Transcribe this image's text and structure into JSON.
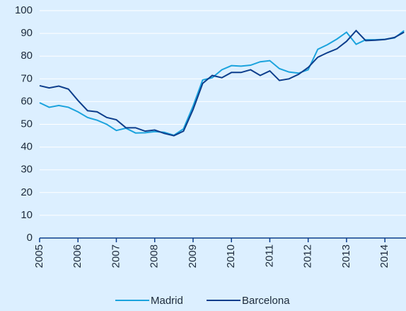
{
  "chart_data": {
    "type": "line",
    "x": [
      2005,
      2005.25,
      2005.5,
      2005.75,
      2006,
      2006.25,
      2006.5,
      2006.75,
      2007,
      2007.25,
      2007.5,
      2007.75,
      2008,
      2008.25,
      2008.5,
      2008.75,
      2009,
      2009.25,
      2009.5,
      2009.75,
      2010,
      2010.25,
      2010.5,
      2010.75,
      2011,
      2011.25,
      2011.5,
      2011.75,
      2012,
      2012.25,
      2012.5,
      2012.75,
      2013,
      2013.25,
      2013.5,
      2013.75,
      2014,
      2014.25,
      2014.5
    ],
    "series": [
      {
        "name": "Madrid",
        "color": "#1ba3dd",
        "values": [
          59.5,
          57.5,
          58.3,
          57.5,
          55.5,
          53,
          51.8,
          50,
          47.3,
          48.3,
          46.2,
          46.3,
          46.8,
          46.5,
          45.2,
          48,
          58,
          69.5,
          70.5,
          74,
          75.8,
          75.6,
          76,
          77.5,
          78,
          74.5,
          73,
          72.5,
          74,
          83,
          85,
          87.5,
          90.5,
          85.2,
          87.2,
          87.2,
          87.4,
          88,
          91.2
        ]
      },
      {
        "name": "Barcelona",
        "color": "#0d3e8c",
        "values": [
          67,
          66,
          66.8,
          65.5,
          60.5,
          56,
          55.5,
          53,
          52,
          48.5,
          48.5,
          47,
          47.5,
          46,
          45,
          47,
          56.5,
          68,
          71.5,
          70.5,
          72.8,
          72.8,
          74,
          71.5,
          73.5,
          69.3,
          70,
          72,
          75,
          79.5,
          81.5,
          83.2,
          86.5,
          91.2,
          86.8,
          87,
          87.3,
          88.2,
          90.5
        ]
      }
    ],
    "xlim": [
      2005,
      2014.55
    ],
    "xticks": [
      2005,
      2006,
      2007,
      2008,
      2009,
      2010,
      2011,
      2012,
      2013,
      2014
    ],
    "ylim": [
      0,
      100
    ],
    "yticks": [
      0,
      10,
      20,
      30,
      40,
      50,
      60,
      70,
      80,
      90,
      100
    ],
    "grid": true,
    "legend": "bottom"
  }
}
